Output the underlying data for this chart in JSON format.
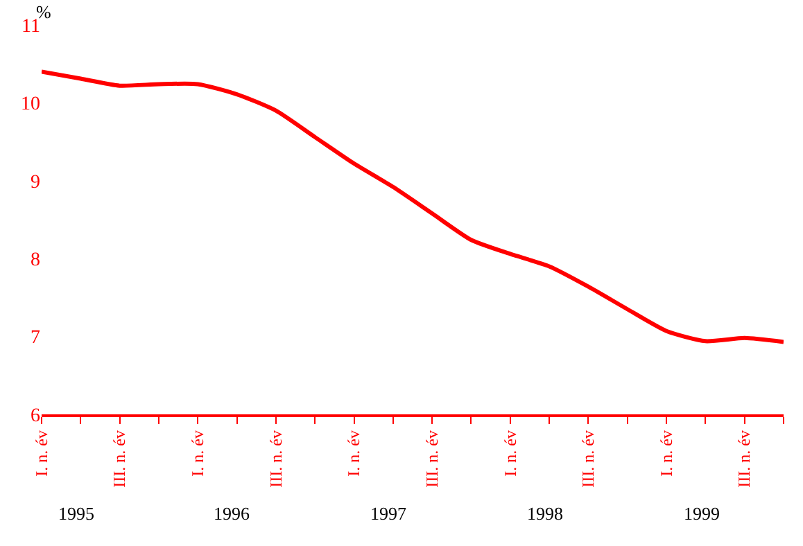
{
  "chart_data": {
    "type": "line",
    "ylabel": "%",
    "categories": [
      "I. n. év",
      null,
      "III. n. év",
      null,
      "I. n. év",
      null,
      "III. n. év",
      null,
      "I. n. év",
      null,
      "III. n. év",
      null,
      "I. n. év",
      null,
      "III. n. év",
      null,
      "I. n. év",
      null,
      "III. n. év",
      null
    ],
    "series": [
      {
        "color": "#ff0000",
        "values": [
          10.4,
          10.31,
          10.22,
          10.24,
          10.24,
          10.11,
          9.9,
          9.56,
          9.22,
          8.92,
          8.58,
          8.24,
          8.06,
          7.9,
          7.64,
          7.35,
          7.07,
          6.94,
          6.98,
          6.93
        ]
      }
    ],
    "ylim": [
      6,
      11
    ],
    "yticks": [
      6,
      7,
      8,
      9,
      10,
      11
    ],
    "legend": false,
    "marker": "none",
    "line_style": "solid",
    "annotations": [
      "1995",
      "1996",
      "1997",
      "1998",
      "1999"
    ]
  }
}
